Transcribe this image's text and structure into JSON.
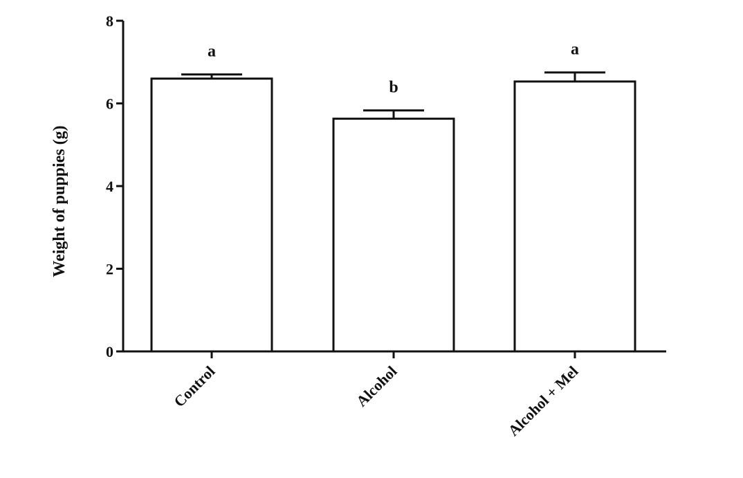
{
  "chart_data": {
    "type": "bar",
    "title": "",
    "xlabel": "",
    "ylabel": "Weight of puppies  (g)",
    "ylim": [
      0,
      8
    ],
    "yticks": [
      "0",
      "2",
      "4",
      "6",
      "8"
    ],
    "categories": [
      "Control",
      "Alcohol",
      "Alcohol + Mel"
    ],
    "values": [
      6.6,
      5.63,
      6.53
    ],
    "errors": [
      0.1,
      0.2,
      0.22
    ],
    "annotations": [
      "a",
      "b",
      "a"
    ],
    "grid": false,
    "legend": "none",
    "colors": {
      "bar_fill": "#ffffff",
      "bar_stroke": "#111111",
      "axis": "#111111"
    }
  }
}
